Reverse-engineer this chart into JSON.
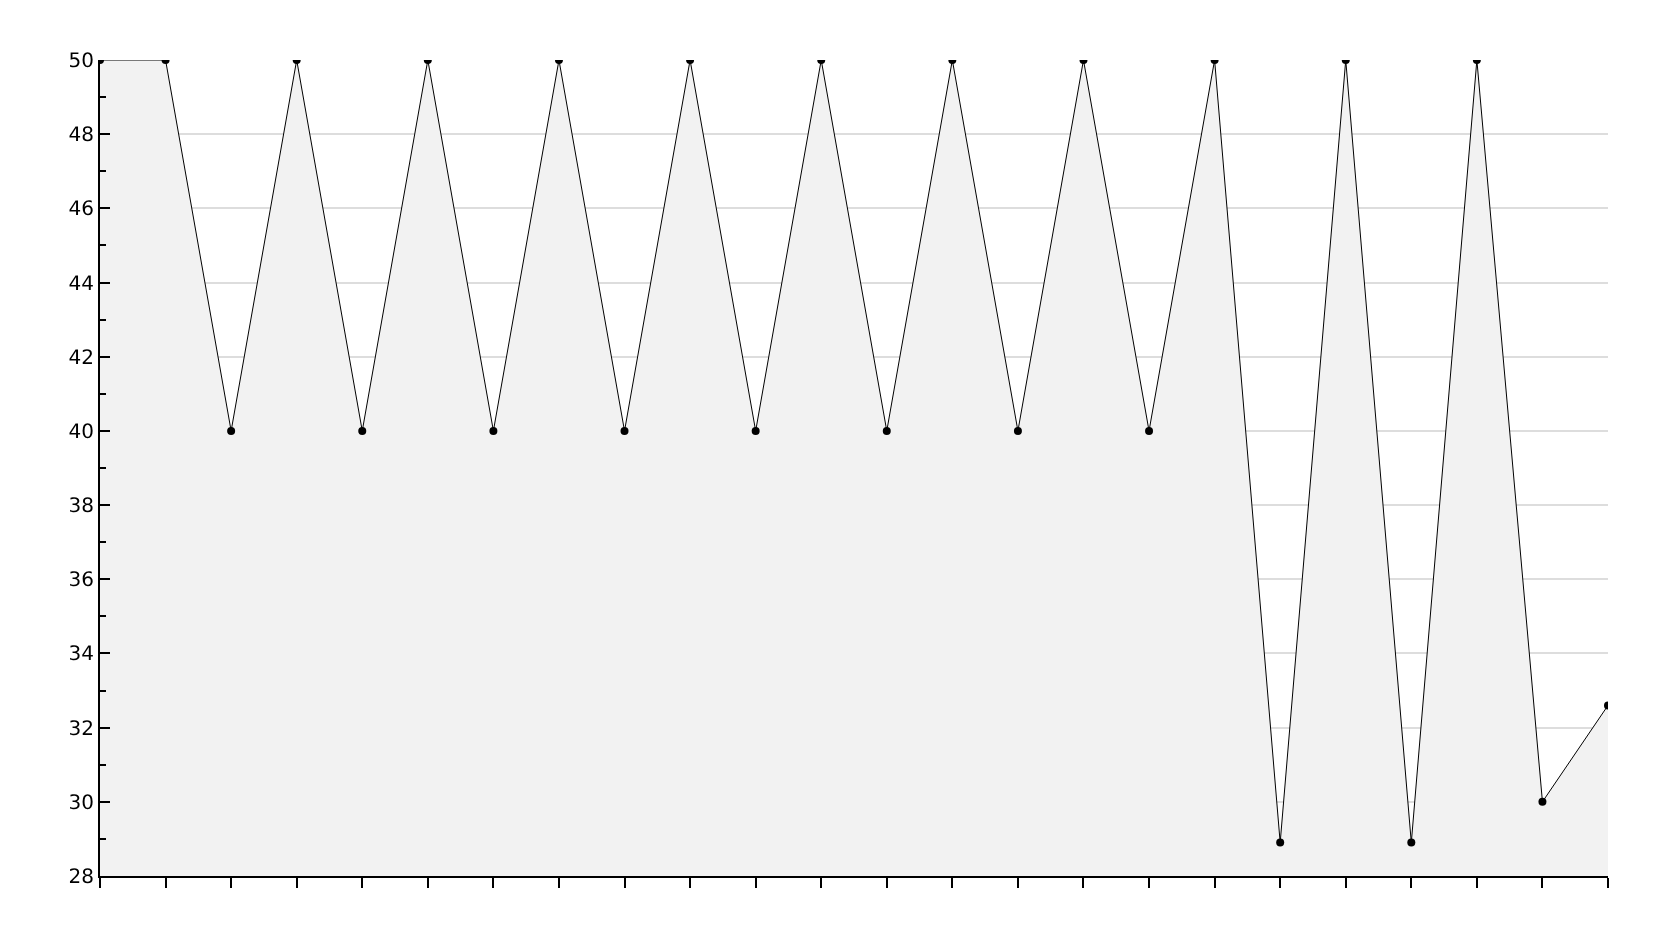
{
  "chart_data": {
    "type": "area",
    "categories": [
      null,
      null,
      null,
      null,
      null,
      null,
      null,
      null,
      null,
      null,
      null,
      null,
      null,
      null,
      null,
      null,
      null,
      null,
      null,
      null,
      null,
      null,
      null,
      null
    ],
    "series": [
      {
        "color": "#000000",
        "values": [
          50,
          50,
          40,
          50,
          40,
          50,
          40,
          50,
          40,
          50,
          40,
          50,
          40,
          50,
          40,
          50,
          40,
          50,
          28.9,
          50,
          28.9,
          50,
          30,
          32.6
        ]
      }
    ],
    "ylim": [
      28,
      50
    ],
    "yticks": [
      28,
      30,
      32,
      34,
      36,
      38,
      40,
      42,
      44,
      46,
      48,
      50
    ],
    "grid": "y",
    "marker": "circle",
    "line_style": "solid",
    "legend": false
  }
}
